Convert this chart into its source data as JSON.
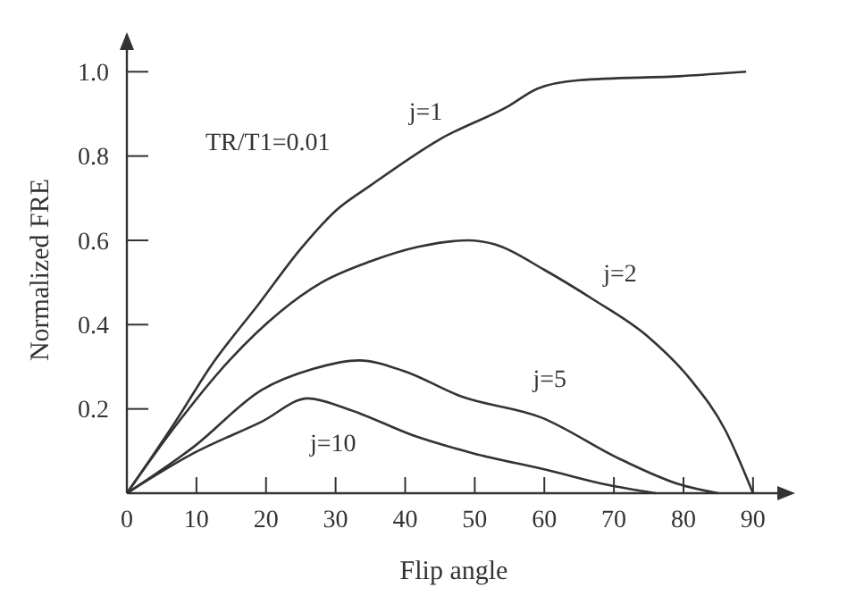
{
  "chart_data": {
    "type": "line",
    "xlabel": "Flip angle",
    "ylabel": "Normalized FRE",
    "xlim": [
      0,
      94
    ],
    "ylim": [
      0,
      1.06
    ],
    "xticks": [
      0,
      10,
      20,
      30,
      40,
      50,
      60,
      70,
      80,
      90
    ],
    "yticks": [
      {
        "value": 0.2,
        "label": "0.2"
      },
      {
        "value": 0.4,
        "label": "0.4"
      },
      {
        "value": 0.6,
        "label": "0.6"
      },
      {
        "value": 0.8,
        "label": "0.8"
      },
      {
        "value": 1,
        "label": "1.0"
      }
    ],
    "grid": false,
    "line_style": "solid",
    "series": [
      {
        "name": "j=1",
        "color": "#333333",
        "x": [
          0,
          7,
          12,
          19,
          25,
          30,
          35,
          45,
          55,
          59,
          65,
          80,
          89
        ],
        "values": [
          0,
          0.17,
          0.3,
          0.45,
          0.58,
          0.67,
          0.73,
          0.84,
          0.92,
          0.96,
          0.98,
          0.99,
          1.0
        ]
      },
      {
        "name": "j=2",
        "color": "#333333",
        "x": [
          0,
          7,
          15,
          22,
          28,
          35,
          42,
          49,
          53,
          60,
          67,
          75,
          81,
          86,
          90
        ],
        "values": [
          0,
          0.16,
          0.32,
          0.43,
          0.5,
          0.55,
          0.585,
          0.6,
          0.59,
          0.53,
          0.46,
          0.37,
          0.27,
          0.15,
          0
        ]
      },
      {
        "name": "j=5",
        "color": "#333333",
        "x": [
          0,
          9.6,
          19.4,
          26.8,
          33.4,
          39.8,
          48,
          59.5,
          71,
          79.6,
          85
        ],
        "values": [
          0,
          0.11,
          0.245,
          0.295,
          0.315,
          0.29,
          0.23,
          0.18,
          0.08,
          0.02,
          0
        ]
      },
      {
        "name": "j=10",
        "color": "#333333",
        "x": [
          0,
          9.6,
          19.4,
          26,
          31.7,
          41.5,
          49.7,
          60.4,
          69,
          76
        ],
        "values": [
          0,
          0.095,
          0.17,
          0.225,
          0.2,
          0.135,
          0.095,
          0.055,
          0.02,
          0
        ]
      }
    ],
    "annotations": [
      "TR/T1=0.01"
    ]
  }
}
